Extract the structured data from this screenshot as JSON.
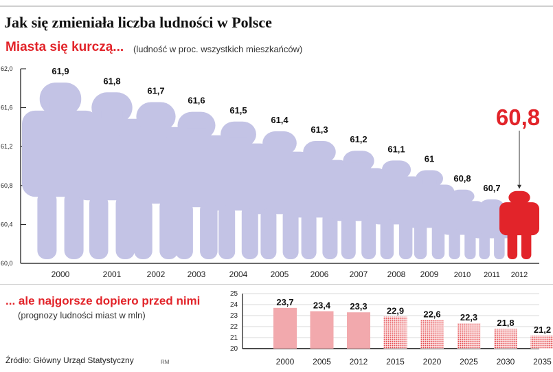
{
  "title": "Jak się zmieniała liczba ludności w Polsce",
  "source": "Źródło: Główny Urząd Statystyczny",
  "author": "RM",
  "colors": {
    "people_fill": "#c3c3e5",
    "highlight": "#e2242a",
    "bar_actual": "#f2a9ad",
    "bar_forecast": "#e5484d",
    "axis": "#111111"
  },
  "chart_data": [
    {
      "type": "bar",
      "title": "Miasta się kurczą...",
      "subtitle": "(ludność w proc. wszystkich mieszkańców)",
      "categories": [
        "2000",
        "2001",
        "2002",
        "2003",
        "2004",
        "2005",
        "2006",
        "2007",
        "2008",
        "2009",
        "2010",
        "2011",
        "2012"
      ],
      "values": [
        61.9,
        61.8,
        61.7,
        61.6,
        61.5,
        61.4,
        61.3,
        61.2,
        61.1,
        61,
        60.8,
        60.7,
        60.8
      ],
      "value_labels": [
        "61,9",
        "61,8",
        "61,7",
        "61,6",
        "61,5",
        "61,4",
        "61,3",
        "61,2",
        "61,1",
        "61",
        "60,8",
        "60,7",
        "60,8"
      ],
      "highlight_index": 12,
      "yticks": [
        "60,0",
        "60,4",
        "60,8",
        "61,2",
        "61,6",
        "62,0"
      ],
      "ylim": [
        60.0,
        62.0
      ]
    },
    {
      "type": "bar",
      "title": "... ale najgorsze dopiero przed nimi",
      "subtitle": "(prognozy ludności miast w mln)",
      "categories": [
        "2000",
        "2005",
        "2012",
        "2015",
        "2020",
        "2025",
        "2030",
        "2035"
      ],
      "values": [
        23.7,
        23.4,
        23.3,
        22.9,
        22.6,
        22.3,
        21.8,
        21.2
      ],
      "value_labels": [
        "23,7",
        "23,4",
        "23,3",
        "22,9",
        "22,6",
        "22,3",
        "21,8",
        "21,2"
      ],
      "forecast_from_index": 3,
      "yticks": [
        "20",
        "21",
        "22",
        "23",
        "24",
        "25"
      ],
      "ylim": [
        20,
        25
      ]
    }
  ]
}
